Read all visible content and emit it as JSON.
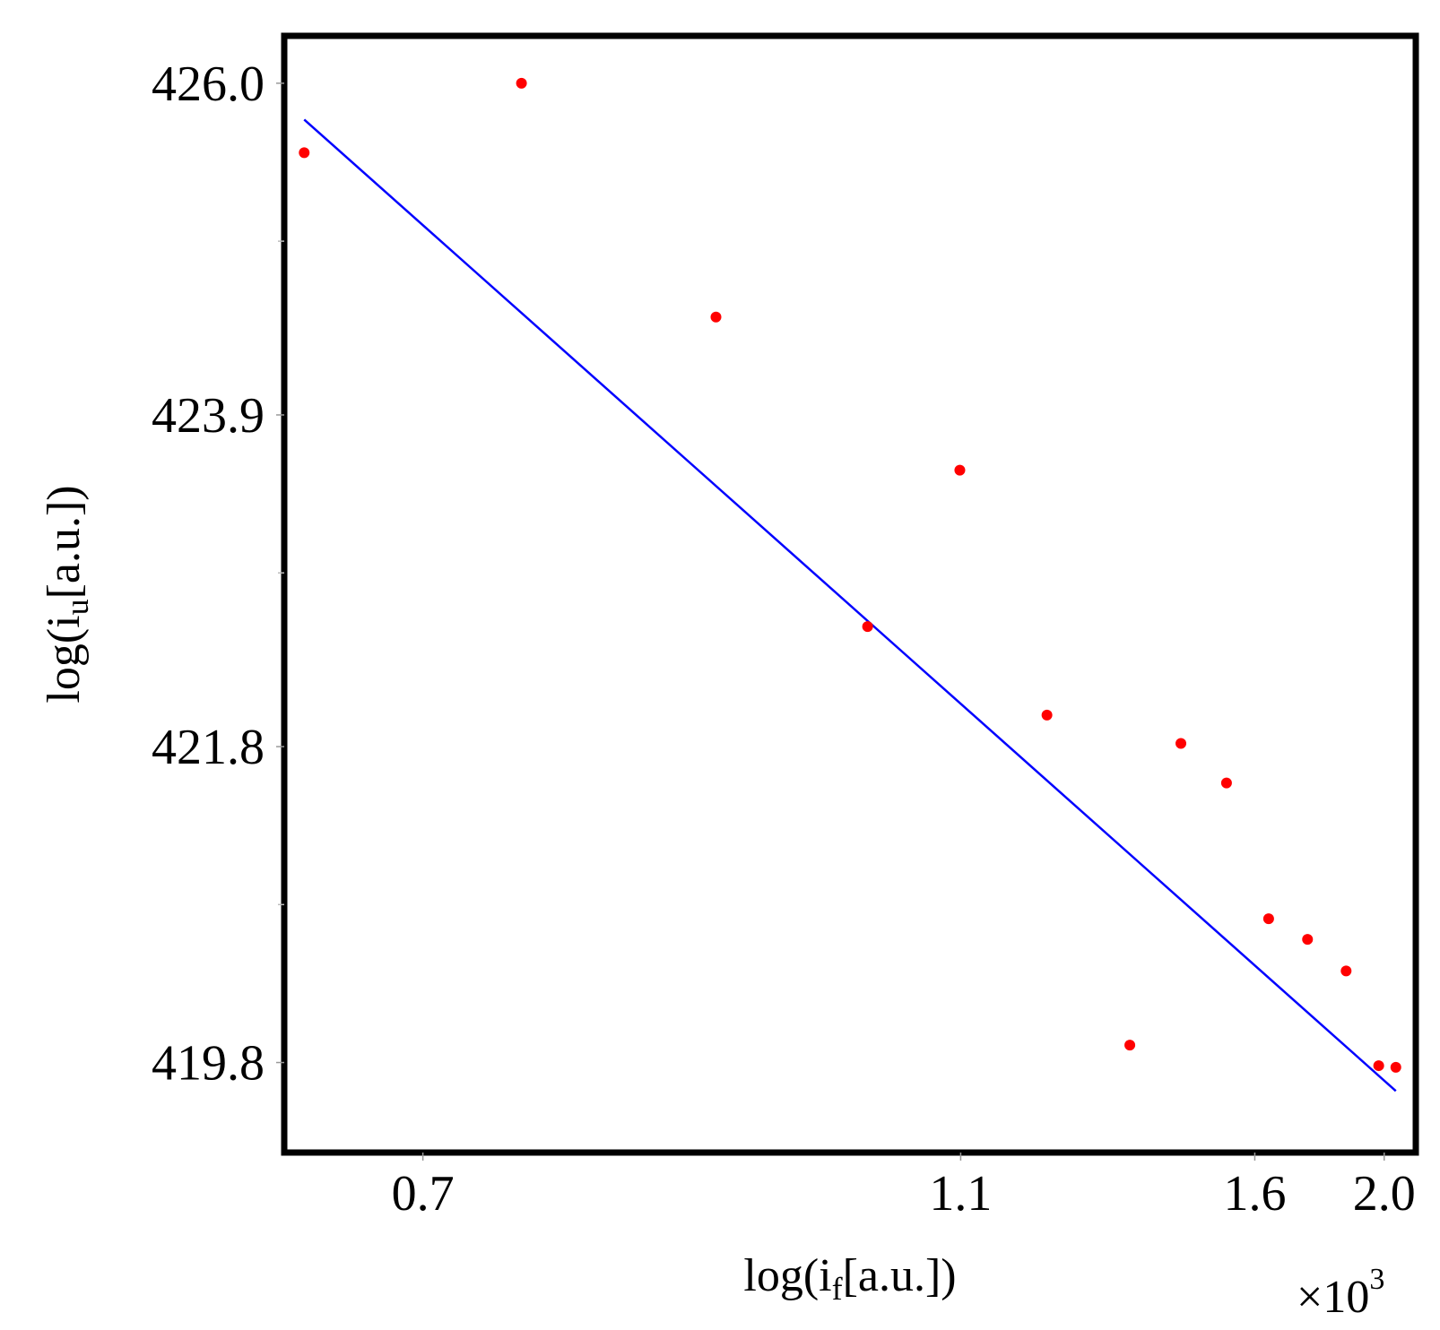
{
  "chart_data": {
    "type": "scatter",
    "title": "",
    "x_multiplier": {
      "base": "×10",
      "exponent": "3"
    },
    "xlabel": {
      "prefix": "log(i",
      "sub": "f",
      "suffix": "[a.u.])"
    },
    "ylabel": {
      "prefix": "log(i",
      "sub": "u",
      "suffix": "[a.u.])"
    },
    "x_scale": "reciprocal",
    "xlim": [
      0.64,
      2.13
    ],
    "ylim": [
      419.23,
      426.3
    ],
    "x_ticks": [
      {
        "value": 0.7,
        "label": "0.7"
      },
      {
        "value": 1.1,
        "label": "1.1"
      },
      {
        "value": 1.6,
        "label": "1.6"
      },
      {
        "value": 2.0,
        "label": "2.0"
      }
    ],
    "y_ticks": [
      {
        "value": 426.0,
        "label": "426.0"
      },
      {
        "value": 423.9,
        "label": "423.9"
      },
      {
        "value": 421.8,
        "label": "421.8"
      },
      {
        "value": 419.8,
        "label": "419.8"
      }
    ],
    "y_minor_ticks": [
      425.0,
      422.9,
      420.8
    ],
    "grid": false,
    "legend": "none",
    "series": [
      {
        "kind": "points",
        "color": "#ff0000",
        "x": [
          0.648,
          0.75,
          0.873,
          1.001,
          1.099,
          1.211,
          1.341,
          1.436,
          1.533,
          1.635,
          1.742,
          1.863,
          1.979,
          2.046
        ],
        "y": [
          425.56,
          426.0,
          424.52,
          422.56,
          423.55,
          422.0,
          419.91,
          421.82,
          421.57,
          420.71,
          420.58,
          420.38,
          419.78,
          419.77
        ]
      },
      {
        "kind": "fit-line",
        "color": "#0000ff",
        "x": [
          0.648,
          2.046
        ],
        "y": [
          425.77,
          419.62
        ]
      }
    ]
  }
}
